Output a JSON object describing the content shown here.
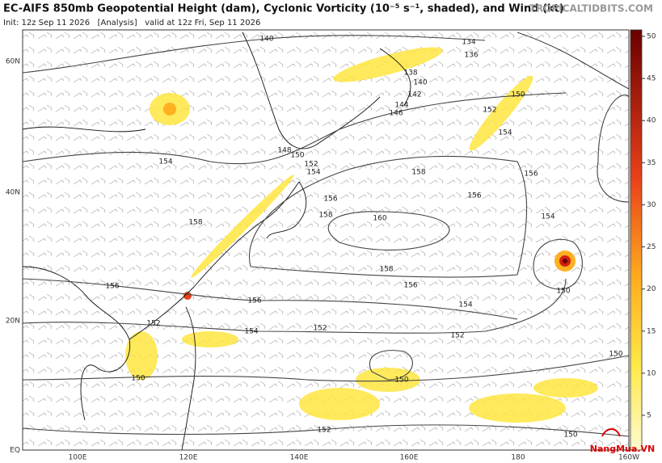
{
  "header": {
    "title": "EC-AIFS 850mb Geopotential Height (dam), Cyclonic Vorticity (10⁻⁵ s⁻¹, shaded), and Wind (kt)",
    "init": "Init: 12z Sep 11 2026   [Analysis]   valid at 12z Fri, Sep 11 2026",
    "site": "TROPICALTIDBITS.COM"
  },
  "latitudes": [
    "60N",
    "40N",
    "20N",
    "EQ"
  ],
  "longitudes": [
    "100E",
    "120E",
    "140E",
    "160E",
    "180",
    "160W"
  ],
  "colorbar": [
    50,
    45,
    40,
    35,
    30,
    25,
    20,
    15,
    10,
    5
  ],
  "contour_labels": [
    "140",
    "134",
    "136",
    "138",
    "140",
    "142",
    "144",
    "146",
    "152",
    "150",
    "154",
    "148",
    "150",
    "152",
    "154",
    "154",
    "156",
    "156",
    "156",
    "158",
    "158",
    "158",
    "160",
    "154",
    "158",
    "156",
    "156",
    "156",
    "154",
    "150",
    "152",
    "154",
    "152",
    "152",
    "150",
    "150",
    "150",
    "152",
    "150"
  ],
  "watermark": "NangMua.VN"
}
